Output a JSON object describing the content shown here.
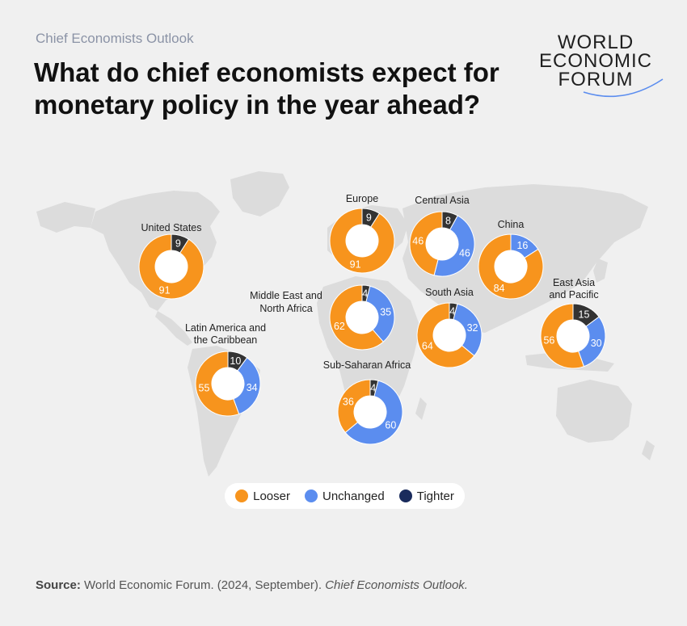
{
  "header": {
    "subtitle": "Chief Economists Outlook",
    "title": "What do chief economists expect for monetary policy in the year ahead?"
  },
  "logo": {
    "lines": [
      "WORLD",
      "ECONOMIC",
      "FORUM"
    ],
    "icon": "wef-arc-logo"
  },
  "colors": {
    "looser": "#f7941d",
    "unchanged": "#5b8def",
    "tighter": "#333333",
    "legend_tighter": "#1a2b5c",
    "map": "#dcdcdc",
    "background": "#f0f0f0"
  },
  "legend": [
    {
      "key": "looser",
      "label": "Looser"
    },
    {
      "key": "unchanged",
      "label": "Unchanged"
    },
    {
      "key": "tighter",
      "label": "Tighter"
    }
  ],
  "chart_data": {
    "type": "donut-map",
    "series_names": [
      "Looser",
      "Unchanged",
      "Tighter"
    ],
    "regions": [
      {
        "name": "United States",
        "looser": 91,
        "unchanged": 0,
        "tighter": 9
      },
      {
        "name": "Europe",
        "looser": 91,
        "unchanged": 0,
        "tighter": 9
      },
      {
        "name": "Central Asia",
        "looser": 46,
        "unchanged": 46,
        "tighter": 8
      },
      {
        "name": "China",
        "looser": 84,
        "unchanged": 16,
        "tighter": 0
      },
      {
        "name": "Middle East and North Africa",
        "looser": 62,
        "unchanged": 35,
        "tighter": 4
      },
      {
        "name": "South Asia",
        "looser": 64,
        "unchanged": 32,
        "tighter": 4
      },
      {
        "name": "East Asia and Pacific",
        "looser": 56,
        "unchanged": 30,
        "tighter": 15
      },
      {
        "name": "Latin America and the Caribbean",
        "looser": 55,
        "unchanged": 34,
        "tighter": 10
      },
      {
        "name": "Sub-Saharan Africa",
        "looser": 36,
        "unchanged": 60,
        "tighter": 4
      }
    ]
  },
  "source": {
    "label": "Source:",
    "text": "World Economic Forum. (2024, September).",
    "publication": "Chief Economists Outlook."
  }
}
